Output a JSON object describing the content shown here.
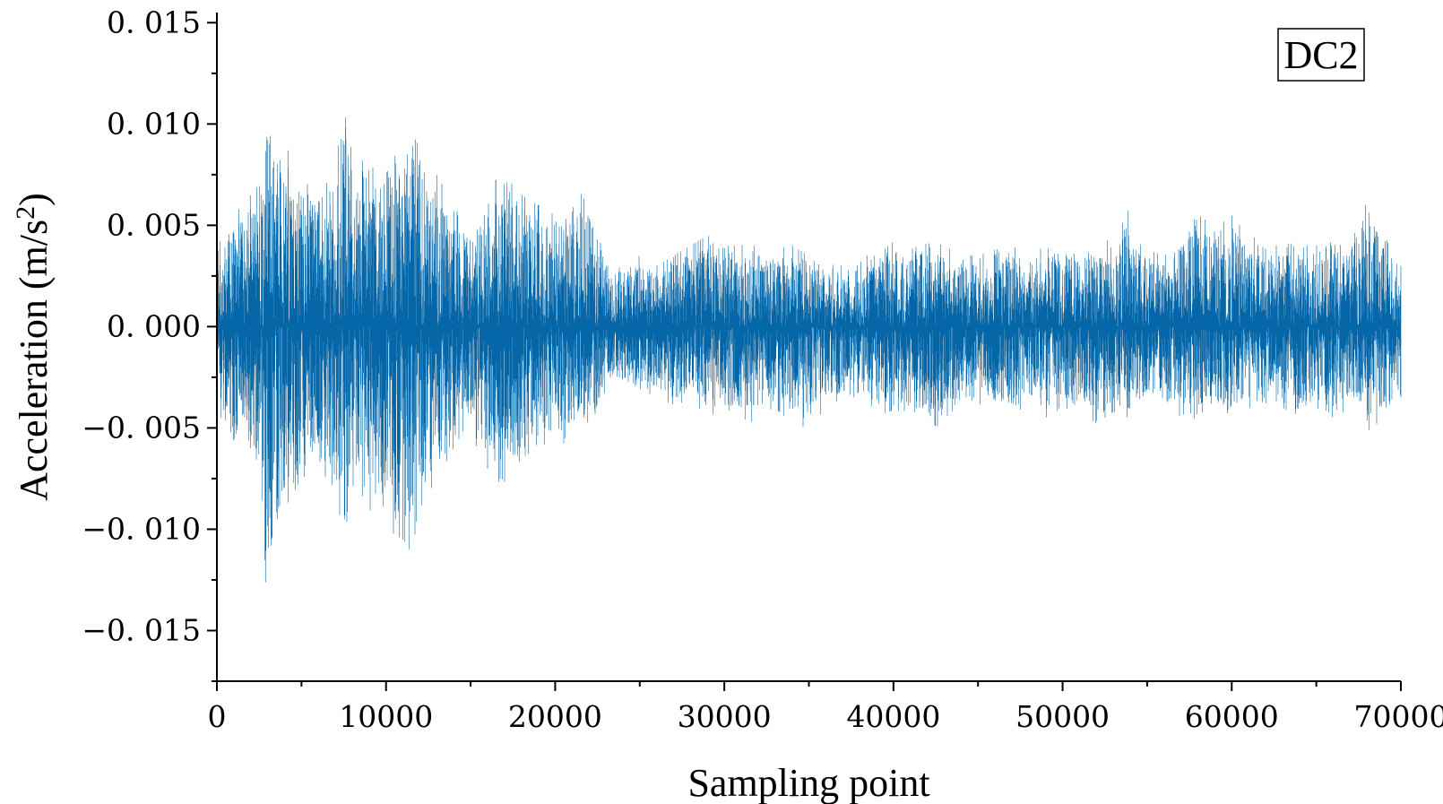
{
  "chart_data": {
    "type": "line",
    "title": "",
    "xlabel": "Sampling point",
    "ylabel_main": "Acceleration (m/s",
    "ylabel_sup": "2",
    "ylabel_close": ")",
    "xlim": [
      0,
      70000
    ],
    "ylim": [
      -0.0175,
      0.0155
    ],
    "x_ticks": [
      0,
      10000,
      20000,
      30000,
      40000,
      50000,
      60000,
      70000
    ],
    "x_tick_labels": [
      "0",
      "10000",
      "20000",
      "30000",
      "40000",
      "50000",
      "60000",
      "70000"
    ],
    "y_ticks": [
      0.015,
      0.01,
      0.005,
      0.0,
      -0.005,
      -0.01,
      -0.015
    ],
    "y_tick_labels": [
      "0. 015",
      "0. 010",
      "0. 005",
      "0. 000",
      "−0. 005",
      "−0. 010",
      "−0. 015"
    ],
    "grid": false,
    "legend": {
      "label": "DC2",
      "placement": "top-right"
    },
    "series": [
      {
        "color": "#0566a8",
        "n_points": 70000,
        "envelope": {
          "x": [
            0,
            500,
            1000,
            1500,
            2000,
            2500,
            3000,
            4000,
            5000,
            6000,
            7000,
            7500,
            8000,
            9000,
            10000,
            11000,
            11500,
            12000,
            13000,
            14000,
            15000,
            15500,
            16000,
            17000,
            18000,
            19000,
            20000,
            21000,
            22000,
            22500,
            23000,
            24000,
            25000,
            26000,
            27000,
            28000,
            29000,
            30000,
            31000,
            32000,
            33000,
            34000,
            35000,
            36000,
            37000,
            38000,
            39000,
            40000,
            41000,
            42000,
            43000,
            44000,
            45000,
            46000,
            47000,
            48000,
            49000,
            50000,
            51000,
            52000,
            53000,
            53800,
            54000,
            55000,
            56000,
            56500,
            57000,
            58000,
            59000,
            60000,
            61000,
            62000,
            63000,
            64000,
            65000,
            66000,
            67000,
            68000,
            69000,
            70000
          ],
          "upper": [
            0.004,
            0.0045,
            0.0055,
            0.006,
            0.0065,
            0.008,
            0.0095,
            0.009,
            0.0075,
            0.007,
            0.008,
            0.0108,
            0.0085,
            0.008,
            0.0085,
            0.009,
            0.0105,
            0.0085,
            0.0075,
            0.006,
            0.0045,
            0.0055,
            0.007,
            0.0075,
            0.0065,
            0.006,
            0.0055,
            0.006,
            0.007,
            0.0055,
            0.003,
            0.003,
            0.0035,
            0.003,
            0.0035,
            0.004,
            0.0045,
            0.0042,
            0.004,
            0.0045,
            0.0038,
            0.004,
            0.0035,
            0.0032,
            0.003,
            0.0035,
            0.0035,
            0.0042,
            0.0038,
            0.0042,
            0.004,
            0.0035,
            0.0035,
            0.0038,
            0.004,
            0.0035,
            0.004,
            0.0038,
            0.0035,
            0.0038,
            0.0045,
            0.0065,
            0.0045,
            0.0038,
            0.0035,
            0.0038,
            0.0045,
            0.0055,
            0.005,
            0.006,
            0.0045,
            0.0042,
            0.004,
            0.0042,
            0.004,
            0.0045,
            0.004,
            0.0062,
            0.0045,
            0.003
          ],
          "lower": [
            -0.004,
            -0.005,
            -0.007,
            -0.006,
            -0.0065,
            -0.0085,
            -0.014,
            -0.009,
            -0.0075,
            -0.007,
            -0.008,
            -0.0105,
            -0.0085,
            -0.009,
            -0.01,
            -0.0105,
            -0.0112,
            -0.009,
            -0.0075,
            -0.006,
            -0.0045,
            -0.0085,
            -0.007,
            -0.008,
            -0.0065,
            -0.006,
            -0.0055,
            -0.006,
            -0.005,
            -0.0045,
            -0.003,
            -0.003,
            -0.0035,
            -0.0032,
            -0.004,
            -0.0035,
            -0.0045,
            -0.004,
            -0.0045,
            -0.0048,
            -0.004,
            -0.0048,
            -0.005,
            -0.004,
            -0.0035,
            -0.0038,
            -0.004,
            -0.0045,
            -0.004,
            -0.0048,
            -0.005,
            -0.004,
            -0.0038,
            -0.004,
            -0.0042,
            -0.004,
            -0.0045,
            -0.004,
            -0.0042,
            -0.0048,
            -0.0042,
            -0.0045,
            -0.004,
            -0.0038,
            -0.0035,
            -0.004,
            -0.0045,
            -0.0048,
            -0.0042,
            -0.0045,
            -0.004,
            -0.0042,
            -0.004,
            -0.0045,
            -0.004,
            -0.0045,
            -0.004,
            -0.0052,
            -0.0045,
            -0.0035
          ]
        }
      }
    ]
  }
}
